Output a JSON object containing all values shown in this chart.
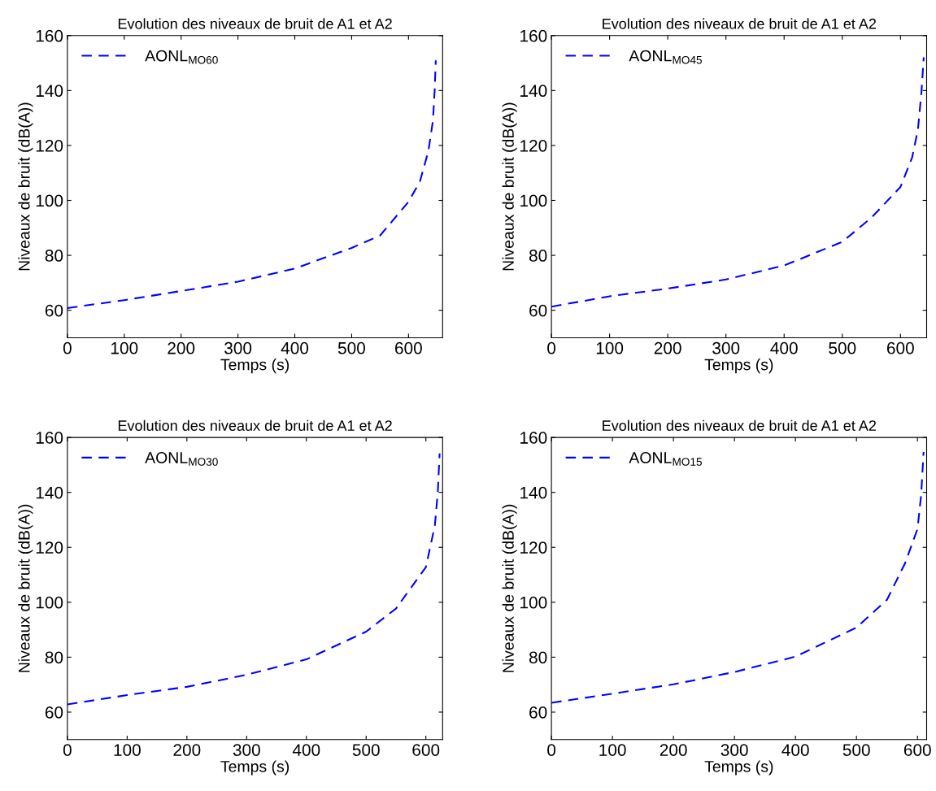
{
  "chart_data": [
    {
      "type": "line",
      "title": "Evolution des niveaux de bruit de A1 et A2",
      "xlabel": "Temps (s)",
      "ylabel": "Niveaux de bruit (dB(A))",
      "xlim": [
        0,
        660
      ],
      "xticks": [
        0,
        100,
        200,
        300,
        400,
        500,
        600
      ],
      "ylim": [
        50,
        160
      ],
      "yticks": [
        60,
        80,
        100,
        120,
        140,
        160
      ],
      "legend": "top left",
      "line_style": "dashed",
      "grid": false,
      "x": [
        0,
        100,
        200,
        300,
        400,
        500,
        550,
        600,
        620,
        635,
        643,
        646,
        648
      ],
      "series": [
        {
          "name": "AONL$_{MO60}$",
          "color": "#0000ff",
          "values": [
            60.8,
            63.7,
            67.0,
            70.4,
            75.2,
            82.7,
            87.2,
            99.5,
            106.8,
            118,
            129,
            140,
            151
          ]
        }
      ]
    },
    {
      "type": "line",
      "title": "Evolution des niveaux de bruit de A1 et A2",
      "xlabel": "Temps (s)",
      "ylabel": "Niveaux de bruit (dB(A))",
      "xlim": [
        0,
        645
      ],
      "xticks": [
        0,
        100,
        200,
        300,
        400,
        500,
        600
      ],
      "ylim": [
        50,
        160
      ],
      "yticks": [
        60,
        80,
        100,
        120,
        140,
        160
      ],
      "legend": "top left",
      "line_style": "dashed",
      "grid": false,
      "x": [
        0,
        100,
        200,
        300,
        400,
        500,
        550,
        600,
        620,
        630,
        636,
        640
      ],
      "series": [
        {
          "name": "AONL$_{MO45}$",
          "color": "#0000ff",
          "values": [
            61.3,
            65.1,
            67.9,
            71.2,
            76.3,
            84.9,
            93.7,
            104.9,
            115.6,
            125.7,
            139.2,
            152.1
          ]
        }
      ]
    },
    {
      "type": "line",
      "title": "Evolution des niveaux de bruit de A1 et A2",
      "xlabel": "Temps (s)",
      "ylabel": "Niveaux de bruit (dB(A))",
      "xlim": [
        0,
        628
      ],
      "xticks": [
        0,
        100,
        200,
        300,
        400,
        500,
        600
      ],
      "ylim": [
        50,
        160
      ],
      "yticks": [
        60,
        80,
        100,
        120,
        140,
        160
      ],
      "legend": "top left",
      "line_style": "dashed",
      "grid": false,
      "x": [
        0,
        100,
        200,
        300,
        400,
        500,
        550,
        600,
        615,
        620,
        623
      ],
      "series": [
        {
          "name": "AONL$_{MO30}$",
          "color": "#0000ff",
          "values": [
            62.8,
            66.2,
            69.2,
            73.6,
            79.2,
            89.3,
            97.7,
            112.8,
            127.9,
            140.2,
            154.2
          ]
        }
      ]
    },
    {
      "type": "line",
      "title": "Evolution des niveaux de bruit de A1 et A2",
      "xlabel": "Temps (s)",
      "ylabel": "Niveaux de bruit (dB(A))",
      "xlim": [
        0,
        615
      ],
      "xticks": [
        0,
        100,
        200,
        300,
        400,
        500,
        600
      ],
      "ylim": [
        50,
        160
      ],
      "yticks": [
        60,
        80,
        100,
        120,
        140,
        160
      ],
      "legend": "top left",
      "line_style": "dashed",
      "grid": false,
      "x": [
        0,
        100,
        200,
        300,
        400,
        500,
        550,
        580,
        600,
        606,
        610
      ],
      "series": [
        {
          "name": "AONL$_{MO15}$",
          "color": "#0000ff",
          "values": [
            63.4,
            66.7,
            70.1,
            74.6,
            80.2,
            90.8,
            100.9,
            114.4,
            126.7,
            139.0,
            154.7
          ]
        }
      ]
    }
  ]
}
